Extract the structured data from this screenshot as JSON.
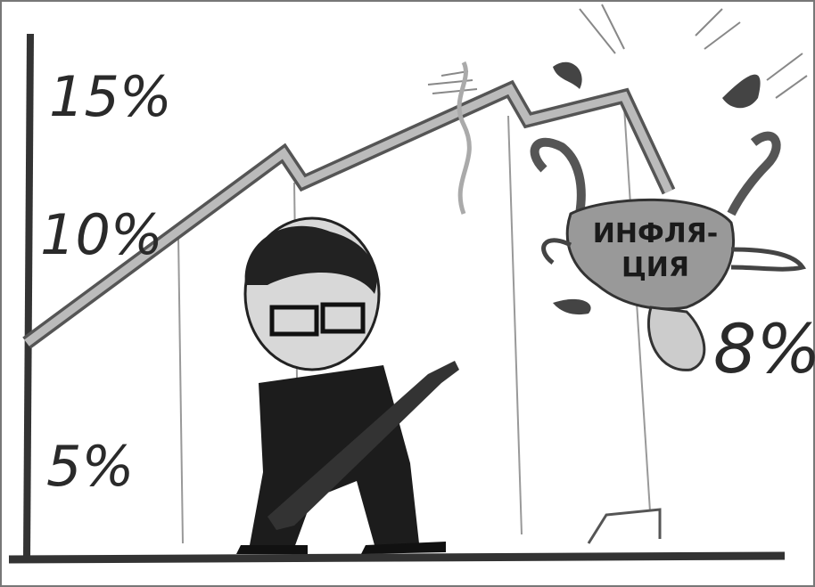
{
  "cartoon": {
    "axis_labels": [
      "15%",
      "10%",
      "5%"
    ],
    "falling_label": "8%",
    "bird_text": [
      "ИНФЛЯ-",
      "ЦИЯ"
    ]
  }
}
